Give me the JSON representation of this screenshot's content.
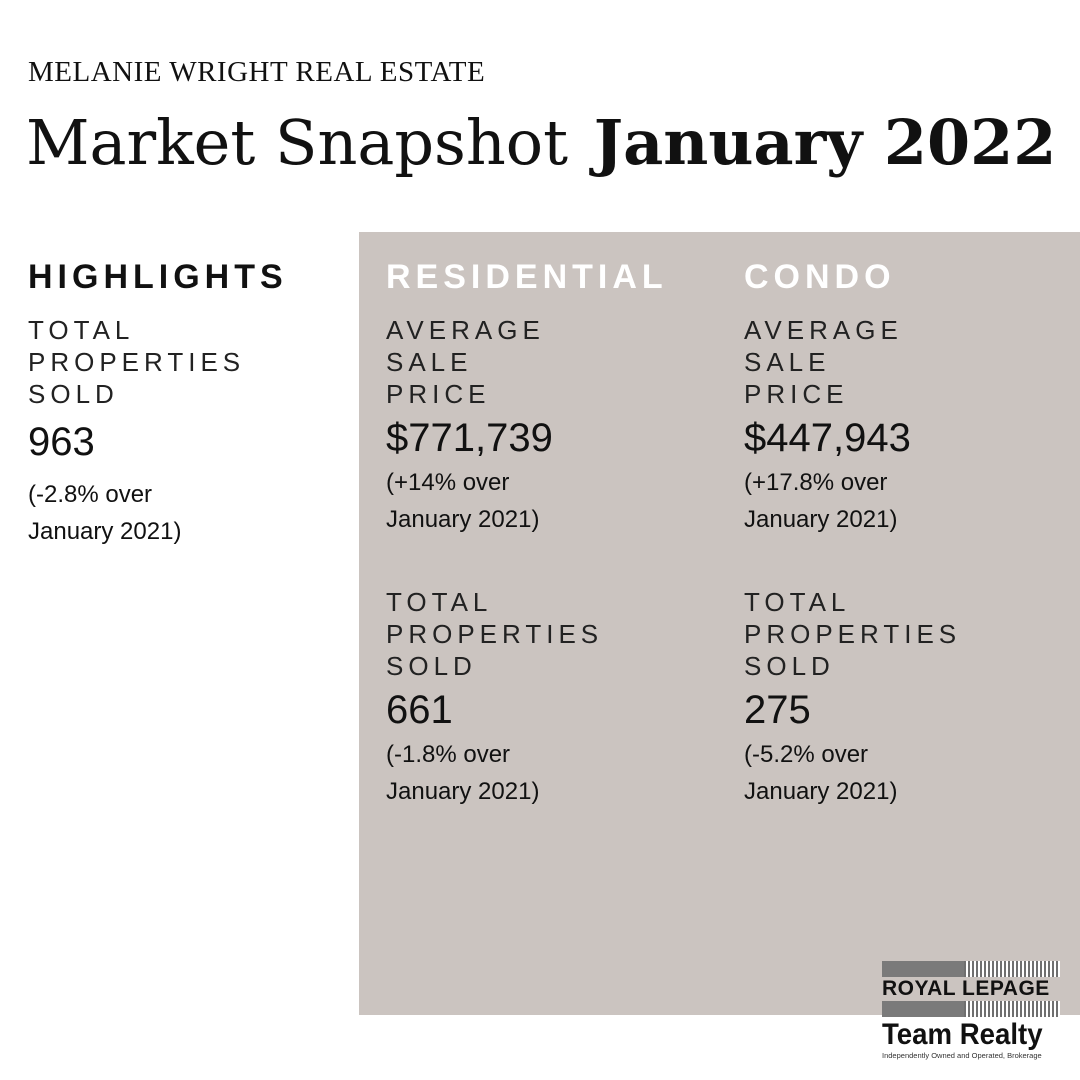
{
  "brand": "MELANIE WRIGHT REAL ESTATE",
  "title": {
    "regular": "Market Snapshot",
    "bold": "January 2022"
  },
  "highlights": {
    "heading": "HIGHLIGHTS",
    "label": "TOTAL\nPROPERTIES\nSOLD",
    "value": "963",
    "change": "(-2.8% over\nJanuary 2021)"
  },
  "residential": {
    "heading": "RESIDENTIAL",
    "price_label": "AVERAGE\nSALE\nPRICE",
    "price_value": "$771,739",
    "price_change": "(+14% over\nJanuary 2021)",
    "sold_label": "TOTAL\nPROPERTIES\nSOLD",
    "sold_value": "661",
    "sold_change": "(-1.8% over\nJanuary 2021)"
  },
  "condo": {
    "heading": "CONDO",
    "price_label": "AVERAGE\nSALE\nPRICE",
    "price_value": "$447,943",
    "price_change": "(+17.8% over\nJanuary 2021)",
    "sold_label": "TOTAL\nPROPERTIES\nSOLD",
    "sold_value": "275",
    "sold_change": "(-5.2% over\nJanuary 2021)"
  },
  "logo": {
    "line1": "ROYAL LEPAGE",
    "line2": "Team Realty",
    "tagline": "Independently Owned and Operated, Brokerage"
  },
  "colors": {
    "panel": "#cbc4c0",
    "panel_heading": "#ffffff",
    "text": "#111111"
  }
}
